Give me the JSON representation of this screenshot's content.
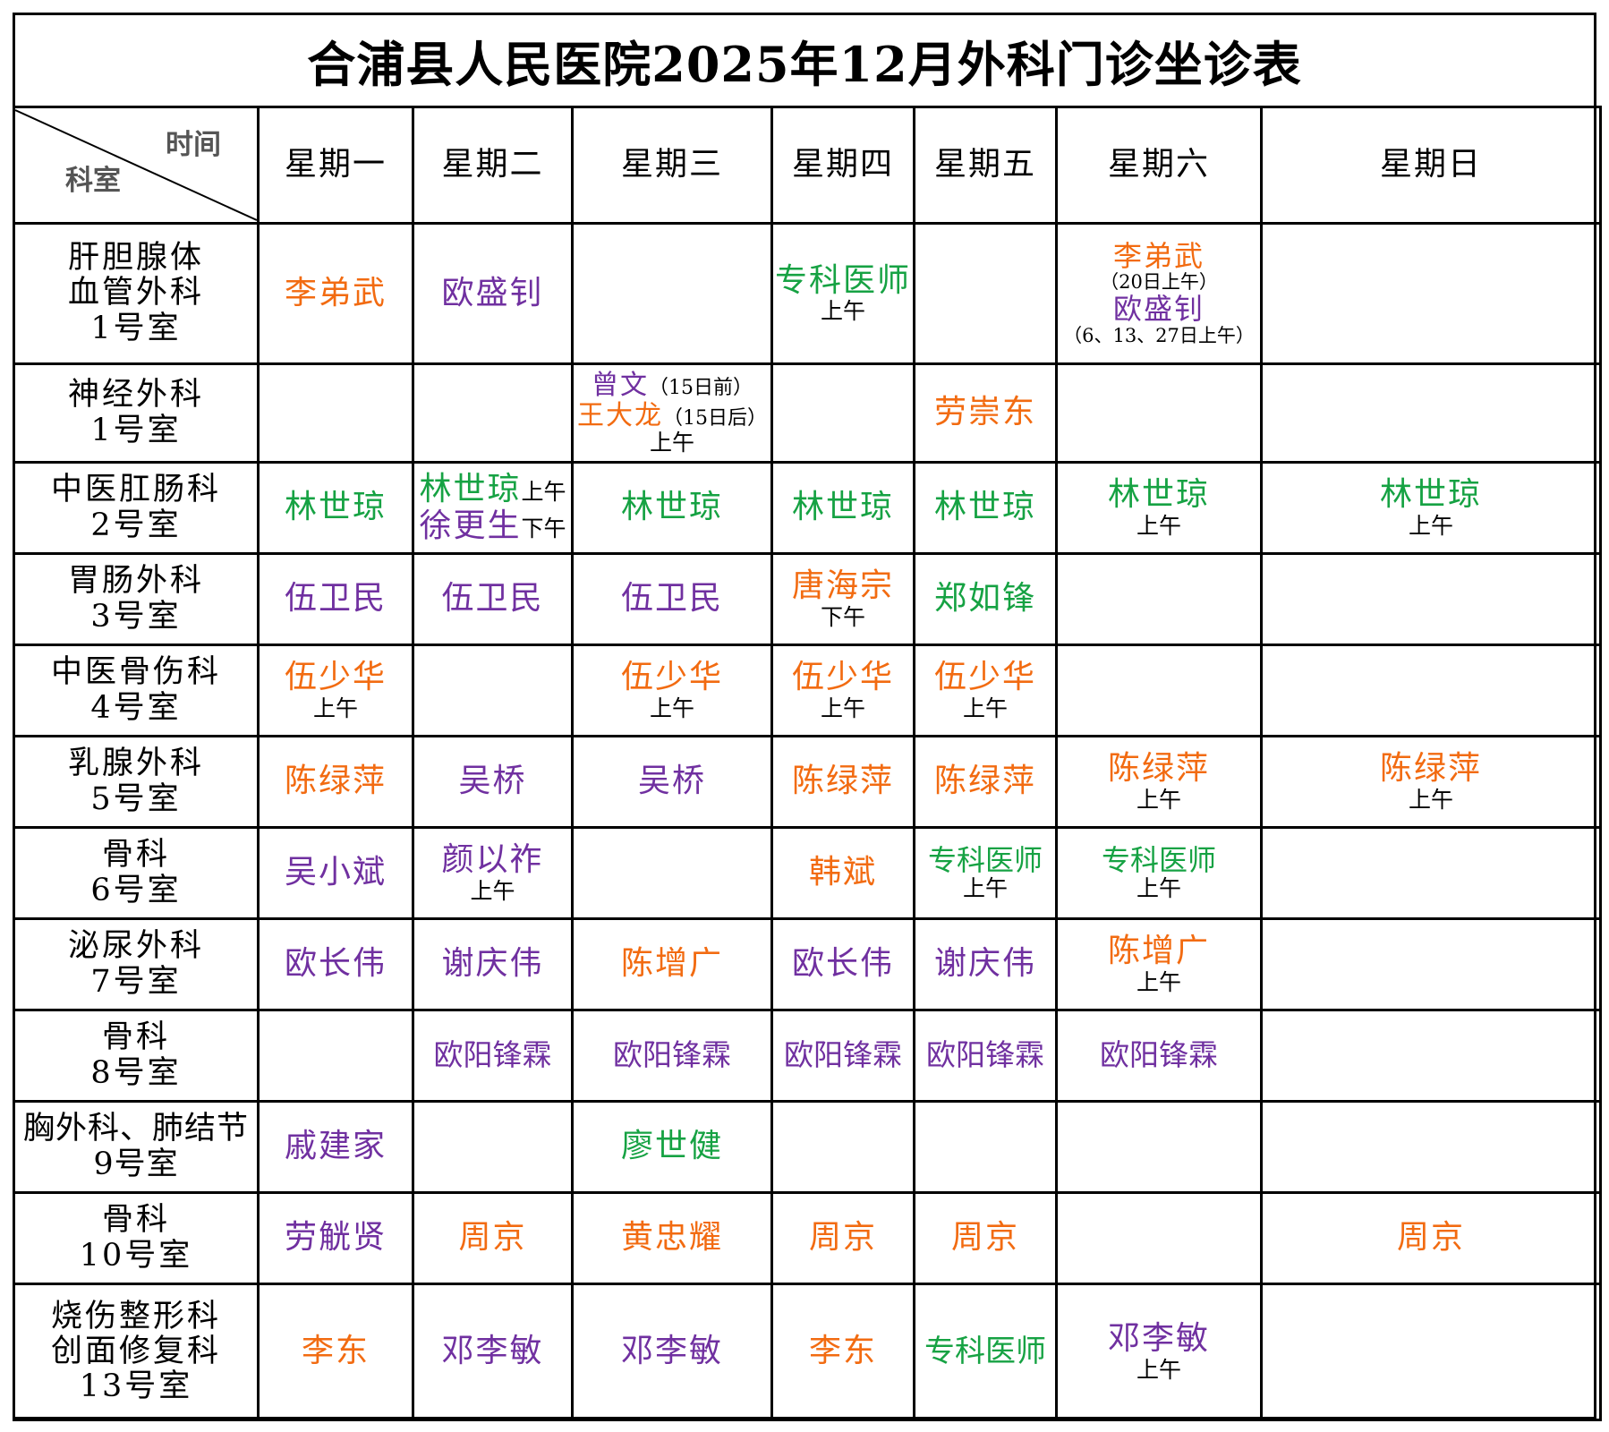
{
  "title": "合浦县人民医院2025年12月外科门诊坐诊表",
  "corner": {
    "time": "时间",
    "dept": "科室"
  },
  "days": [
    "星期一",
    "星期二",
    "星期三",
    "星期四",
    "星期五",
    "星期六",
    "星期日"
  ],
  "colors": {
    "orange": "#f26b11",
    "purple": "#7030a0",
    "green": "#16a243",
    "black": "#000000"
  },
  "rows": [
    {
      "dept": [
        "肝胆腺体",
        "血管外科",
        "1号室"
      ],
      "mon": "李弟武",
      "tue": "欧盛钊",
      "thu": "专科医师",
      "thu_note": "上午",
      "sat1": "李弟武",
      "sat1_note": "（20日上午）",
      "sat2": "欧盛钊",
      "sat2_note": "（6、13、27日上午）"
    },
    {
      "dept": [
        "神经外科",
        "1号室"
      ],
      "wed1": "曾文",
      "wed1_note": "（15日前）",
      "wed2": "王大龙",
      "wed2_note": "（15日后）",
      "wed_note": "上午",
      "fri": "劳崇东"
    },
    {
      "dept": [
        "中医肛肠科",
        "2号室"
      ],
      "mon": "林世琼",
      "tue1": "林世琼",
      "tue1_note": "上午",
      "tue2": "徐更生",
      "tue2_note": "下午",
      "wed": "林世琼",
      "thu": "林世琼",
      "fri": "林世琼",
      "sat": "林世琼",
      "sat_note": "上午",
      "sun": "林世琼",
      "sun_note": "上午"
    },
    {
      "dept": [
        "胃肠外科",
        "3号室"
      ],
      "mon": "伍卫民",
      "tue": "伍卫民",
      "wed": "伍卫民",
      "thu": "唐海宗",
      "thu_note": "下午",
      "fri": "郑如锋"
    },
    {
      "dept": [
        "中医骨伤科",
        "4号室"
      ],
      "mon": "伍少华",
      "mon_note": "上午",
      "wed": "伍少华",
      "wed_note": "上午",
      "thu": "伍少华",
      "thu_note": "上午",
      "fri": "伍少华",
      "fri_note": "上午"
    },
    {
      "dept": [
        "乳腺外科",
        "5号室"
      ],
      "mon": "陈绿萍",
      "tue": "吴桥",
      "wed": "吴桥",
      "thu": "陈绿萍",
      "fri": "陈绿萍",
      "sat": "陈绿萍",
      "sat_note": "上午",
      "sun": "陈绿萍",
      "sun_note": "上午"
    },
    {
      "dept": [
        "骨科",
        "6号室"
      ],
      "mon": "吴小斌",
      "tue": "颜以祚",
      "tue_note": "上午",
      "thu": "韩斌",
      "fri": "专科医师",
      "fri_note": "上午",
      "sat": "专科医师",
      "sat_note": "上午"
    },
    {
      "dept": [
        "泌尿外科",
        "7号室"
      ],
      "mon": "欧长伟",
      "tue": "谢庆伟",
      "wed": "陈增广",
      "thu": "欧长伟",
      "fri": "谢庆伟",
      "sat": "陈增广",
      "sat_note": "上午"
    },
    {
      "dept": [
        "骨科",
        "8号室"
      ],
      "tue": "欧阳锋霖",
      "wed": "欧阳锋霖",
      "thu": "欧阳锋霖",
      "fri": "欧阳锋霖",
      "sat": "欧阳锋霖"
    },
    {
      "dept": [
        "胸外科、肺结节",
        "9号室"
      ],
      "mon": "戚建家",
      "wed": "廖世健"
    },
    {
      "dept": [
        "骨科",
        "10号室"
      ],
      "mon": "劳觥贤",
      "tue": "周京",
      "wed": "黄忠耀",
      "thu": "周京",
      "fri": "周京",
      "sun": "周京"
    },
    {
      "dept": [
        "烧伤整形科",
        "创面修复科",
        "13号室"
      ],
      "mon": "李东",
      "tue": "邓李敏",
      "wed": "邓李敏",
      "thu": "李东",
      "fri": "专科医师",
      "sat": "邓李敏",
      "sat_note": "上午"
    }
  ]
}
